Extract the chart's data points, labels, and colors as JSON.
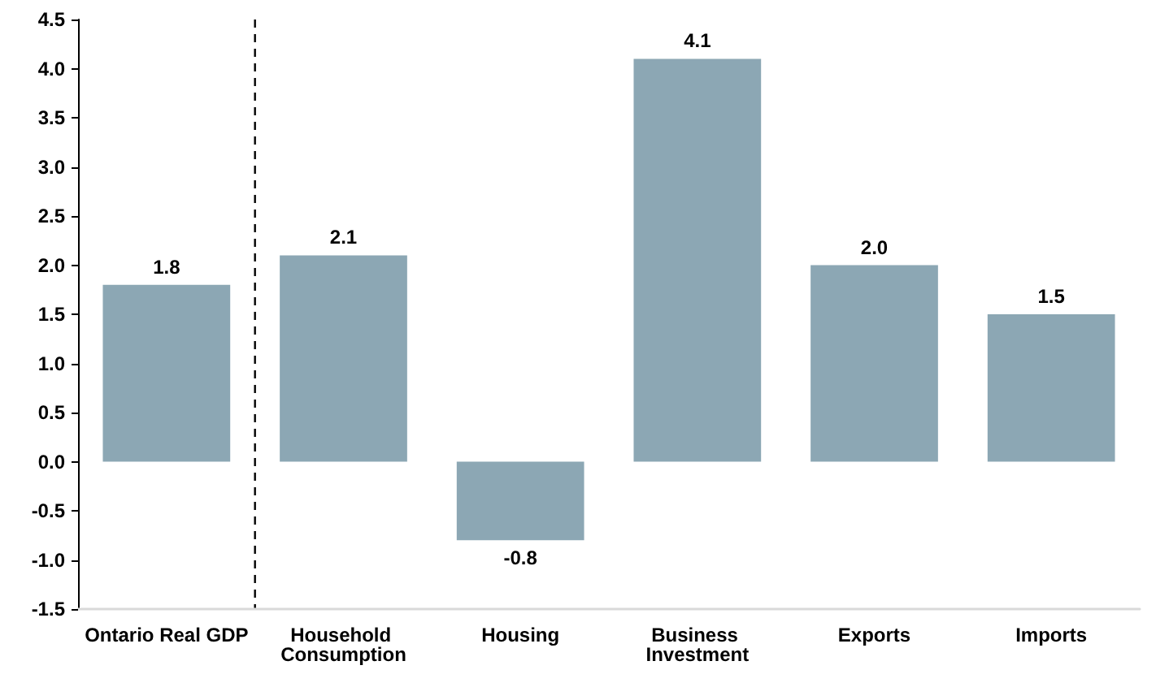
{
  "chart_data": {
    "type": "bar",
    "categories": [
      "Ontario Real GDP",
      "Household Consumption",
      "Housing",
      "Business Investment",
      "Exports",
      "Imports"
    ],
    "values": [
      1.8,
      2.1,
      -0.8,
      4.1,
      2.0,
      1.5
    ],
    "value_labels": [
      "1.8",
      "2.1",
      "-0.8",
      "4.1",
      "2.0",
      "1.5"
    ],
    "color": "#8ca7b4",
    "ylim": [
      -1.5,
      4.5
    ],
    "yticks": [
      {
        "value": -1.5,
        "label": "-1.5"
      },
      {
        "value": -1,
        "label": "-1.0"
      },
      {
        "value": -0.5,
        "label": "-0.5"
      },
      {
        "value": 0,
        "label": "0.0"
      },
      {
        "value": 0.5,
        "label": "0.5"
      },
      {
        "value": 1,
        "label": "1.0"
      },
      {
        "value": 1.5,
        "label": "1.5"
      },
      {
        "value": 2,
        "label": "2.0"
      },
      {
        "value": 2.5,
        "label": "2.5"
      },
      {
        "value": 3,
        "label": "3.0"
      },
      {
        "value": 3.5,
        "label": "3.5"
      },
      {
        "value": 4,
        "label": "4.0"
      },
      {
        "value": 4.5,
        "label": "4.5"
      }
    ],
    "grid": false
  }
}
